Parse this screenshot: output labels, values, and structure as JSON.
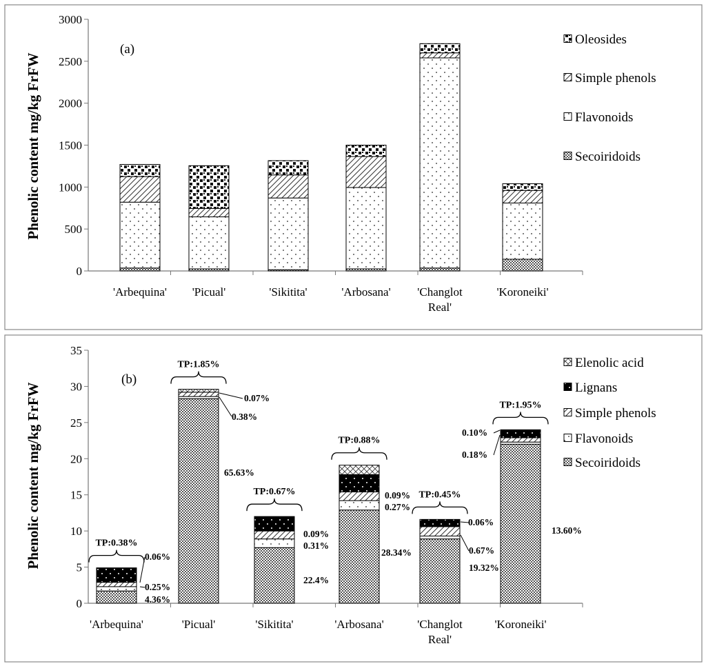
{
  "charts": [
    {
      "panel_label": "(a)",
      "type": "stacked-bar",
      "ylabel": "Phenolic content mg/kg FrFW",
      "ylim": [
        0,
        3000
      ],
      "yticks": [
        "0",
        "500",
        "1000",
        "1500",
        "2000",
        "2500",
        "3000"
      ],
      "categories": [
        [
          "'Arbequina'"
        ],
        [
          "'Picual'"
        ],
        [
          "'Sikitita'"
        ],
        [
          "'Arbosana'"
        ],
        [
          "'Changlot",
          "Real'"
        ],
        [
          "'Koroneiki'"
        ]
      ],
      "series": [
        {
          "name": "Secoiridoids",
          "pattern": "p-checker",
          "values": [
            35,
            25,
            15,
            25,
            35,
            140
          ]
        },
        {
          "name": "Flavonoids",
          "pattern": "p-dots",
          "values": [
            785,
            620,
            855,
            970,
            2505,
            670
          ]
        },
        {
          "name": "Simple phenols",
          "pattern": "p-hatch",
          "values": [
            305,
            100,
            275,
            370,
            60,
            150
          ]
        },
        {
          "name": "Oleosides",
          "pattern": "p-blocks",
          "values": [
            145,
            510,
            170,
            135,
            110,
            80
          ]
        }
      ],
      "legend_order": [
        "Oleosides",
        "Simple phenols",
        "Flavonoids",
        "Secoiridoids"
      ]
    },
    {
      "panel_label": "(b)",
      "type": "stacked-bar",
      "ylabel": "Phenolic content mg/kg FrFW",
      "ylim": [
        0,
        35
      ],
      "yticks": [
        "0",
        "5",
        "10",
        "15",
        "20",
        "25",
        "30",
        "35"
      ],
      "categories": [
        [
          "'Arbequina'"
        ],
        [
          "'Picual'"
        ],
        [
          "'Sikitita'"
        ],
        [
          "'Arbosana'"
        ],
        [
          "'Changlot",
          "Real'"
        ],
        [
          "'Koroneiki'"
        ]
      ],
      "series": [
        {
          "name": "Secoiridoids",
          "pattern": "p-checker",
          "values": [
            1.7,
            28.3,
            7.7,
            12.9,
            8.9,
            22.0
          ]
        },
        {
          "name": "Flavonoids",
          "pattern": "p-dots",
          "values": [
            0.6,
            0.3,
            1.2,
            1.3,
            0.4,
            0.3
          ]
        },
        {
          "name": "Simple phenols",
          "pattern": "p-hatch",
          "values": [
            0.6,
            0.6,
            1.1,
            1.2,
            1.3,
            0.6
          ]
        },
        {
          "name": "Lignans",
          "pattern": "p-black",
          "values": [
            2.0,
            0.0,
            2.0,
            2.4,
            1.0,
            1.1
          ]
        },
        {
          "name": "Elenolic acid",
          "pattern": "p-cross",
          "values": [
            0.0,
            0.4,
            0.0,
            1.3,
            0.0,
            0.0
          ]
        }
      ],
      "legend_order": [
        "Elenolic acid",
        "Lignans",
        "Simple phenols",
        "Flavonoids",
        "Secoiridoids"
      ],
      "total_labels": [
        "TP:0.38%",
        "TP:1.85%",
        "TP:0.67%",
        "TP:0.88%",
        "TP:0.45%",
        "TP:1.95%"
      ],
      "percent_labels": [
        [
          "0.06%",
          "0.25%",
          "4.36%"
        ],
        [
          "0.07%",
          "0.38%",
          "65.63%"
        ],
        [
          "0.09%",
          "0.31%",
          "22.4%"
        ],
        [
          "0.09%",
          "0.27%",
          "28.34%"
        ],
        [
          "0.06%",
          "0.67%",
          "19.32%"
        ],
        [
          "0.10%",
          "0.18%",
          "13.60%"
        ]
      ]
    }
  ]
}
